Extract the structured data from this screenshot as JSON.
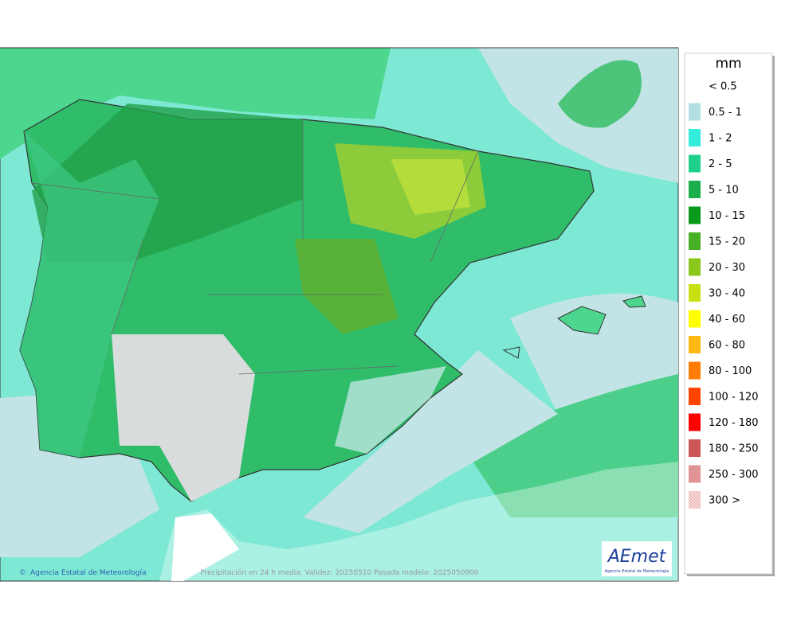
{
  "map": {
    "footer_left": "Agencia Estatal de Meteorología",
    "footer_center": "Precipitación en 24 h media. Validez: 20250510 Pasada modelo: 2025050900",
    "logo": {
      "name": "AEmet",
      "subtitle": "Agencia Estatal de Meteorología"
    }
  },
  "legend": {
    "unit": "mm",
    "items": [
      {
        "label": "< 0.5",
        "color": "#ffffff"
      },
      {
        "label": "0.5 - 1",
        "color": "#b3dfe3"
      },
      {
        "label": "1 - 2",
        "color": "#33ecdc"
      },
      {
        "label": "2 - 5",
        "color": "#1ed08c"
      },
      {
        "label": "5 - 10",
        "color": "#1aae4c"
      },
      {
        "label": "10 - 15",
        "color": "#0a9a1c"
      },
      {
        "label": "15 - 20",
        "color": "#48b024"
      },
      {
        "label": "20 - 30",
        "color": "#8ac81c"
      },
      {
        "label": "30 - 40",
        "color": "#c6e012"
      },
      {
        "label": "40 - 60",
        "color": "#ffff00"
      },
      {
        "label": "60 - 80",
        "color": "#ffb814"
      },
      {
        "label": "80 - 100",
        "color": "#ff7c00"
      },
      {
        "label": "100 - 120",
        "color": "#ff4400"
      },
      {
        "label": "120 - 180",
        "color": "#ff0000"
      },
      {
        "label": "180 - 250",
        "color": "#cc5555"
      },
      {
        "label": "250 - 300",
        "color": "#e09494"
      },
      {
        "label": "300 >",
        "color": "#f6cccc"
      }
    ]
  }
}
